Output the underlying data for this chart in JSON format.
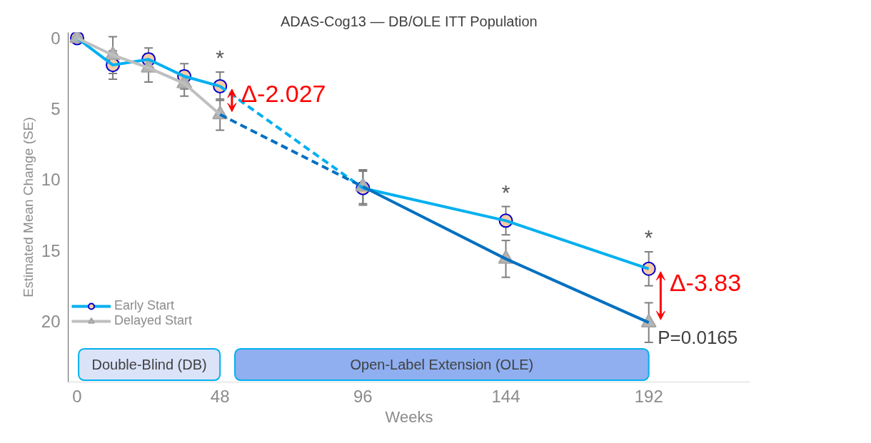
{
  "chart_data": {
    "type": "line",
    "title": "ADAS-Cog13 — DB/OLE ITT Population",
    "xlabel": "Weeks",
    "ylabel": "Estimated Mean Change (SE)",
    "xlim": [
      -3,
      226
    ],
    "xticks": [
      0,
      48,
      96,
      144,
      192
    ],
    "ylim": [
      24.3,
      -0.4
    ],
    "yticks": [
      0,
      5,
      10,
      15,
      20
    ],
    "grid": false,
    "legend": "bottom left",
    "series": [
      {
        "name": "Early Start",
        "x": [
          0,
          12,
          24,
          36,
          48
        ],
        "color": "#00b0f0",
        "marker": "circle",
        "colors": [
          "#f8cba6",
          "#f8cba6",
          "#f8cba6",
          "#f8cba6",
          "#f8cba6"
        ],
        "values": [
          0,
          1.9,
          1.5,
          2.7,
          3.4
        ],
        "errors": [
          null,
          1.0,
          0.8,
          0.9,
          1.0
        ]
      },
      {
        "x": [
          48,
          96
        ],
        "color": "#00b0f0",
        "line_style": "dashed",
        "values": [
          3.4,
          10.6
        ]
      },
      {
        "x": [
          96,
          144,
          192
        ],
        "color": "#00b0f0",
        "marker": "circle",
        "colors": [
          "#f8cba6",
          "#f8cba6",
          "#f8cba6"
        ],
        "values": [
          10.6,
          12.9,
          16.3
        ],
        "errors": [
          1.2,
          1.0,
          1.2
        ]
      },
      {
        "name": "Delayed Start",
        "x": [
          0,
          12,
          24,
          36,
          48
        ],
        "color": "#bfbfbf",
        "marker": "triangle",
        "colors": [
          "#b4b4b4",
          "#b4b4b4",
          "#b4b4b4",
          "#b4b4b4",
          "#b4b4b4"
        ],
        "values": [
          0,
          1.2,
          2.1,
          3.2,
          5.4
        ],
        "errors": [
          null,
          1.3,
          1.0,
          0.9,
          1.1
        ]
      },
      {
        "x": [
          48,
          96
        ],
        "color": "#0070c0",
        "line_style": "dashed",
        "values": [
          5.4,
          10.5
        ]
      },
      {
        "x": [
          96,
          144,
          192
        ],
        "color": "#0070c0",
        "marker": "triangle",
        "colors": [
          "#b4b4b4",
          "#b4b4b4",
          "#b4b4b4"
        ],
        "values": [
          10.5,
          15.6,
          20.1
        ],
        "errors": [
          1.2,
          1.3,
          1.4
        ]
      }
    ],
    "bands": [
      {
        "axis": "x",
        "from": 0.5,
        "to": 48,
        "label": "Double-Blind (DB)",
        "color": "#dae3f8"
      },
      {
        "axis": "x",
        "from": 53,
        "to": 192,
        "label": "Open-Label Extension (OLE)",
        "color": "#8faff0"
      }
    ],
    "annotations": [
      {
        "text": "*",
        "x": 48,
        "y": 3.4
      },
      {
        "text": "*",
        "x": 144,
        "y": 12.9
      },
      {
        "text": "*",
        "x": 192,
        "y": 16.3
      },
      {
        "text": "Δ-2.027",
        "x": 48,
        "y": 3.4
      },
      {
        "text": "Δ-3.83",
        "x": 192,
        "y": 16.3
      },
      {
        "text": "P=0.0165",
        "x": 192,
        "y": 20.1
      }
    ]
  }
}
